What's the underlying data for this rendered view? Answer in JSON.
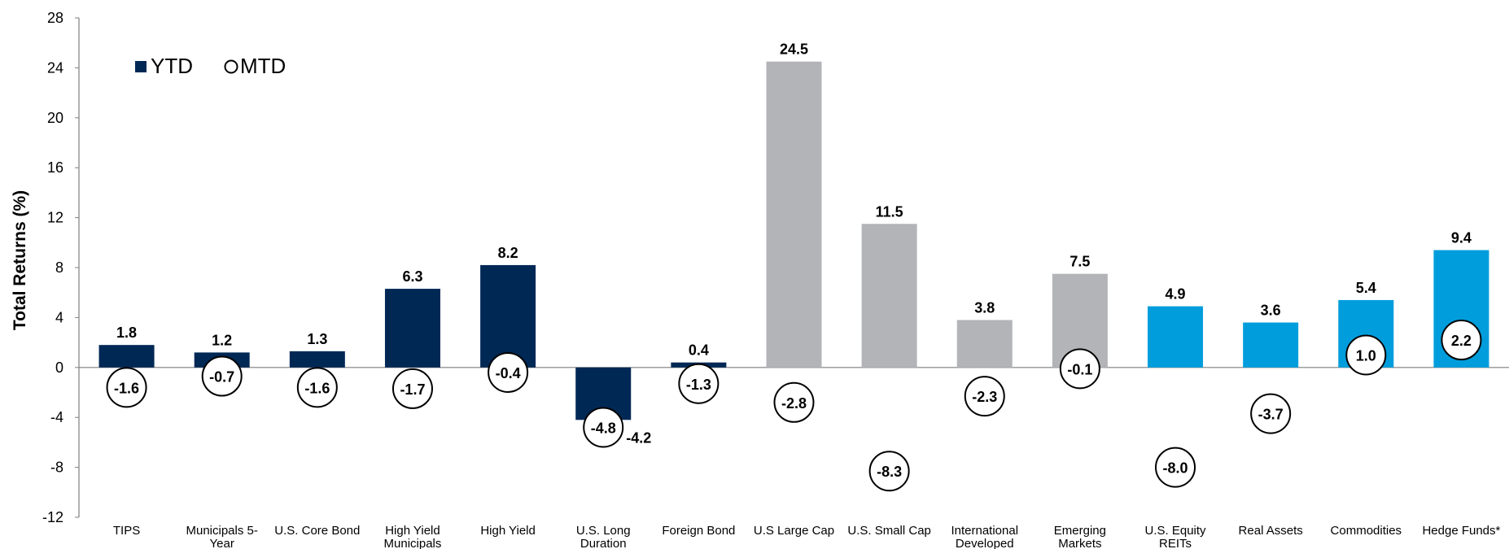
{
  "chart_data": {
    "type": "bar",
    "ylabel": "Total Returns (%)",
    "xlabel": "",
    "ylim": [
      -12,
      28
    ],
    "yticks": [
      -12,
      -8,
      -4,
      0,
      4,
      8,
      12,
      16,
      20,
      24,
      28
    ],
    "legend": {
      "position": "top-left",
      "ytd_label": "YTD",
      "mtd_label": "MTD"
    },
    "colors": {
      "fixed_income": "#002855",
      "equity": "#b2b4b8",
      "real_assets": "#009ddc"
    },
    "categories": [
      {
        "label": [
          "TIPS"
        ],
        "group": "fixed_income"
      },
      {
        "label": [
          "Municipals 5-",
          "Year"
        ],
        "group": "fixed_income"
      },
      {
        "label": [
          "U.S. Core Bond"
        ],
        "group": "fixed_income"
      },
      {
        "label": [
          "High Yield",
          "Municipals"
        ],
        "group": "fixed_income"
      },
      {
        "label": [
          "High Yield"
        ],
        "group": "fixed_income"
      },
      {
        "label": [
          "U.S. Long",
          "Duration"
        ],
        "group": "fixed_income"
      },
      {
        "label": [
          "Foreign Bond"
        ],
        "group": "fixed_income"
      },
      {
        "label": [
          "U.S Large Cap"
        ],
        "group": "equity"
      },
      {
        "label": [
          "U.S. Small Cap"
        ],
        "group": "equity"
      },
      {
        "label": [
          "International",
          "Developed"
        ],
        "group": "equity"
      },
      {
        "label": [
          "Emerging",
          "Markets"
        ],
        "group": "equity"
      },
      {
        "label": [
          "U.S. Equity",
          "REITs"
        ],
        "group": "real_assets"
      },
      {
        "label": [
          "Real Assets"
        ],
        "group": "real_assets"
      },
      {
        "label": [
          "Commodities"
        ],
        "group": "real_assets"
      },
      {
        "label": [
          "Hedge Funds*"
        ],
        "group": "real_assets"
      }
    ],
    "series": [
      {
        "name": "YTD",
        "values": [
          1.8,
          1.2,
          1.3,
          6.3,
          8.2,
          -4.2,
          0.4,
          24.5,
          11.5,
          3.8,
          7.5,
          4.9,
          3.6,
          5.4,
          9.4
        ],
        "labels": [
          "1.8",
          "1.2",
          "1.3",
          "6.3",
          "8.2",
          "-4.2",
          "0.4",
          "24.5",
          "11.5",
          "3.8",
          "7.5",
          "4.9",
          "3.6",
          "5.4",
          "9.4"
        ]
      },
      {
        "name": "MTD",
        "values": [
          -1.6,
          -0.7,
          -1.6,
          -1.7,
          -0.4,
          -4.8,
          -1.3,
          -2.8,
          -8.3,
          -2.3,
          -0.1,
          -8.0,
          -3.7,
          1.0,
          2.2
        ],
        "labels": [
          "-1.6",
          "-0.7",
          "-1.6",
          "-1.7",
          "-0.4",
          "-4.8",
          "-1.3",
          "-2.8",
          "-8.3",
          "-2.3",
          "-0.1",
          "-8.0",
          "-3.7",
          "1.0",
          "2.2"
        ]
      }
    ]
  }
}
